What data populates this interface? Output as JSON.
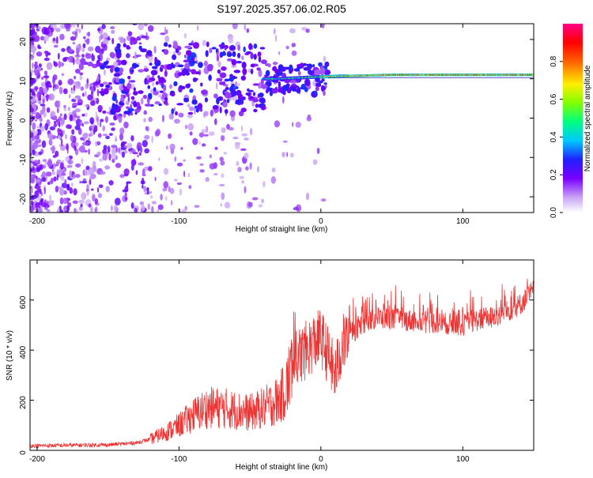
{
  "figure_title": "S197.2025.357.06.02.R05",
  "colors": {
    "snr_line": "#ee3333",
    "axis": "#000000",
    "plot_bg": "#ffffff"
  },
  "chart_data": [
    {
      "type": "heatmap",
      "name": "spectrogram",
      "xlabel": "Height of straight line (km)",
      "ylabel": "Frequency (Hz)",
      "xlim": [
        -205,
        150
      ],
      "ylim": [
        -24,
        24
      ],
      "xticks": [
        -200,
        -100,
        0,
        100
      ],
      "xtick_labels": [
        "-200",
        "-100",
        "0",
        "100"
      ],
      "yticks": [
        20,
        10,
        0,
        -10,
        -20
      ],
      "ytick_labels": [
        "20",
        "10",
        "0",
        "-10",
        "-20"
      ],
      "description_series": [
        {
          "name": "carrier ridge frequency",
          "x": [
            -110,
            -60,
            -30,
            0,
            50,
            100,
            150
          ],
          "y": [
            10,
            10,
            10,
            10.5,
            11,
            11,
            11
          ]
        }
      ],
      "colorbar": {
        "label": "Normalized spectral amplitude",
        "range": [
          0,
          1
        ],
        "ticks": [
          0.0,
          0.2,
          0.4,
          0.6,
          0.8
        ],
        "tick_labels": [
          "0.0",
          "0.2",
          "0.4",
          "0.6",
          "0.8"
        ]
      }
    },
    {
      "type": "line",
      "name": "snr",
      "xlabel": "Height of straight line (km)",
      "ylabel": "SNR (10 * v/v)",
      "xlim": [
        -205,
        150
      ],
      "ylim": [
        0,
        760
      ],
      "xticks": [
        -200,
        -100,
        0,
        100
      ],
      "xtick_labels": [
        "-200",
        "-100",
        "0",
        "100"
      ],
      "yticks": [
        0,
        200,
        400,
        600
      ],
      "ytick_labels": [
        "0",
        "200",
        "400",
        "600"
      ],
      "series": [
        {
          "name": "SNR envelope (approx.)",
          "x": [
            -205,
            -180,
            -150,
            -130,
            -120,
            -110,
            -100,
            -90,
            -80,
            -70,
            -60,
            -50,
            -40,
            -30,
            -25,
            -20,
            -15,
            -10,
            -5,
            0,
            5,
            10,
            15,
            20,
            30,
            40,
            60,
            80,
            100,
            110,
            120,
            130,
            140,
            150
          ],
          "y": [
            18,
            20,
            22,
            30,
            45,
            70,
            100,
            140,
            170,
            170,
            160,
            150,
            170,
            200,
            240,
            340,
            380,
            400,
            430,
            450,
            380,
            300,
            420,
            460,
            510,
            530,
            520,
            510,
            500,
            520,
            530,
            550,
            580,
            640
          ]
        }
      ]
    }
  ]
}
